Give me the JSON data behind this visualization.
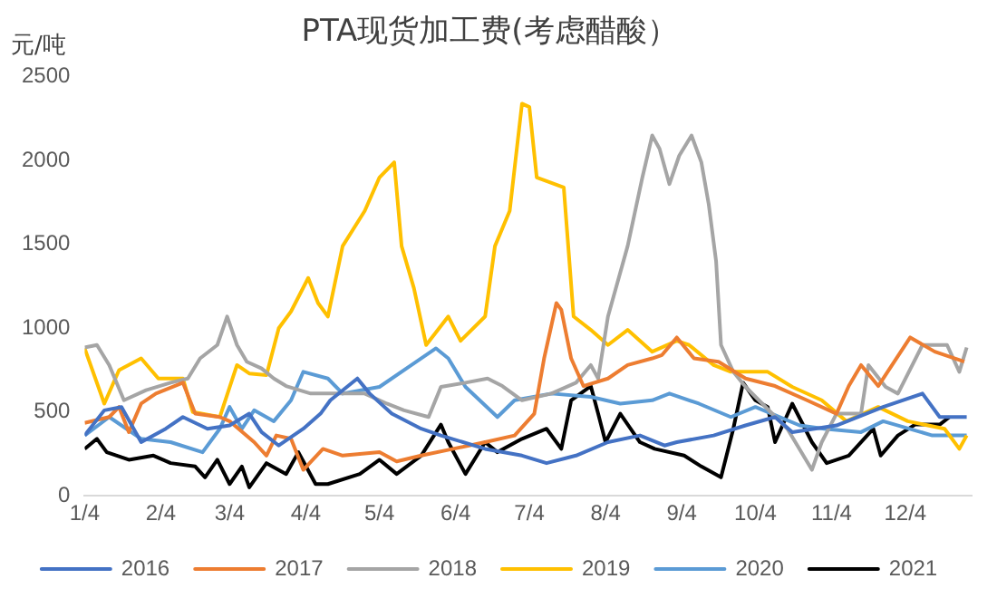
{
  "chart_data": {
    "type": "line",
    "title": "PTA现货加工费(考虑醋酸）",
    "ylabel": "元/吨",
    "xlim": [
      "--01-04",
      "--12-31"
    ],
    "xticks": [
      {
        "value": "--01-04",
        "label": "1/4"
      },
      {
        "value": "--02-04",
        "label": "2/4"
      },
      {
        "value": "--03-04",
        "label": "3/4"
      },
      {
        "value": "--04-04",
        "label": "4/4"
      },
      {
        "value": "--05-04",
        "label": "5/4"
      },
      {
        "value": "--06-04",
        "label": "6/4"
      },
      {
        "value": "--07-04",
        "label": "7/4"
      },
      {
        "value": "--08-04",
        "label": "8/4"
      },
      {
        "value": "--09-04",
        "label": "9/4"
      },
      {
        "value": "--10-04",
        "label": "10/4"
      },
      {
        "value": "--11-04",
        "label": "11/4"
      },
      {
        "value": "--12-04",
        "label": "12/4"
      }
    ],
    "ylim": [
      0,
      2500
    ],
    "yticks": [
      0,
      500,
      1000,
      1500,
      2000,
      2500
    ],
    "grid": false,
    "legend": "bottom",
    "marker": "none",
    "line_style": "solid",
    "series": [
      {
        "name": "2016",
        "color": "#4472c4",
        "x": [
          "--01-04",
          "--01-12",
          "--01-19",
          "--01-27",
          "--02-06",
          "--02-13",
          "--02-23",
          "--03-04",
          "--03-12",
          "--03-17",
          "--03-24",
          "--04-03",
          "--04-10",
          "--04-14",
          "--04-25",
          "--04-30",
          "--05-09",
          "--05-21",
          "--05-29",
          "--06-16",
          "--07-01",
          "--07-11",
          "--07-23",
          "--08-05",
          "--08-18",
          "--08-28",
          "--09-02",
          "--09-17",
          "--09-30",
          "--10-12",
          "--10-19",
          "--11-06",
          "--11-25",
          "--12-11",
          "--12-18",
          "--12-29"
        ],
        "values": [
          360,
          510,
          530,
          320,
          400,
          470,
          400,
          420,
          490,
          380,
          300,
          400,
          490,
          570,
          700,
          610,
          490,
          400,
          360,
          280,
          240,
          195,
          240,
          320,
          360,
          300,
          320,
          360,
          420,
          470,
          380,
          420,
          530,
          610,
          470,
          470
        ]
      },
      {
        "name": "2017",
        "color": "#ed7d31",
        "x": [
          "--01-04",
          "--01-14",
          "--01-18",
          "--01-22",
          "--01-27",
          "--02-02",
          "--02-13",
          "--02-18",
          "--02-28",
          "--03-04",
          "--03-14",
          "--03-19",
          "--03-23",
          "--03-29",
          "--04-03",
          "--04-11",
          "--04-19",
          "--05-04",
          "--05-11",
          "--05-21",
          "--06-03",
          "--06-16",
          "--06-28",
          "--07-06",
          "--07-10",
          "--07-15",
          "--07-17",
          "--07-21",
          "--07-26",
          "--08-05",
          "--08-13",
          "--08-23",
          "--08-27",
          "--09-02",
          "--09-09",
          "--09-19",
          "--09-30",
          "--10-12",
          "--10-25",
          "--11-06",
          "--11-11",
          "--11-16",
          "--11-23",
          "--12-06",
          "--12-16",
          "--12-28"
        ],
        "values": [
          435,
          470,
          530,
          380,
          550,
          610,
          675,
          490,
          470,
          445,
          320,
          240,
          360,
          340,
          155,
          280,
          240,
          260,
          205,
          240,
          280,
          320,
          360,
          490,
          820,
          1150,
          1110,
          820,
          655,
          700,
          780,
          820,
          840,
          945,
          820,
          800,
          700,
          655,
          570,
          490,
          655,
          780,
          655,
          945,
          860,
          800
        ]
      },
      {
        "name": "2018",
        "color": "#a5a5a5",
        "x": [
          "--01-04",
          "--01-09",
          "--01-14",
          "--01-20",
          "--01-29",
          "--02-08",
          "--02-15",
          "--02-20",
          "--02-27",
          "--03-03",
          "--03-07",
          "--03-11",
          "--03-17",
          "--03-22",
          "--03-27",
          "--04-06",
          "--04-19",
          "--04-28",
          "--05-07",
          "--05-14",
          "--05-24",
          "--05-29",
          "--06-08",
          "--06-17",
          "--06-23",
          "--07-01",
          "--07-13",
          "--07-23",
          "--07-29",
          "--08-01",
          "--08-05",
          "--08-13",
          "--08-19",
          "--08-23",
          "--08-26",
          "--08-30",
          "--09-03",
          "--09-08",
          "--09-12",
          "--09-15",
          "--09-18",
          "--09-20",
          "--09-25",
          "--09-30",
          "--10-17",
          "--10-27",
          "--10-31",
          "--11-06",
          "--11-16",
          "--11-19",
          "--11-26",
          "--12-01",
          "--12-11",
          "--12-21",
          "--12-26",
          "--12-29"
        ],
        "values": [
          885,
          900,
          780,
          570,
          630,
          675,
          700,
          820,
          900,
          1070,
          900,
          800,
          760,
          700,
          655,
          610,
          610,
          610,
          550,
          510,
          470,
          650,
          675,
          700,
          655,
          570,
          610,
          675,
          780,
          700,
          1070,
          1490,
          1900,
          2150,
          2070,
          1860,
          2030,
          2150,
          1990,
          1740,
          1400,
          900,
          740,
          650,
          400,
          155,
          320,
          490,
          490,
          780,
          650,
          610,
          900,
          900,
          740,
          885
        ]
      },
      {
        "name": "2019",
        "color": "#ffc000",
        "x": [
          "--01-04",
          "--01-12",
          "--01-18",
          "--01-27",
          "--02-03",
          "--02-13",
          "--02-17",
          "--02-28",
          "--03-07",
          "--03-12",
          "--03-19",
          "--03-24",
          "--03-29",
          "--04-05",
          "--04-09",
          "--04-13",
          "--04-19",
          "--04-28",
          "--05-04",
          "--05-10",
          "--05-13",
          "--05-18",
          "--05-23",
          "--06-01",
          "--06-06",
          "--06-16",
          "--06-20",
          "--06-26",
          "--07-01",
          "--07-04",
          "--07-07",
          "--07-18",
          "--07-22",
          "--07-29",
          "--08-05",
          "--08-13",
          "--08-23",
          "--09-02",
          "--09-07",
          "--09-17",
          "--09-24",
          "--10-09",
          "--10-19",
          "--10-31",
          "--11-10",
          "--11-23",
          "--12-05",
          "--12-20",
          "--12-26",
          "--12-29"
        ],
        "values": [
          880,
          550,
          750,
          820,
          700,
          700,
          500,
          470,
          780,
          730,
          720,
          1000,
          1100,
          1300,
          1150,
          1070,
          1490,
          1700,
          1900,
          1990,
          1490,
          1240,
          900,
          1070,
          925,
          1070,
          1490,
          1700,
          2340,
          2320,
          1900,
          1840,
          1070,
          990,
          900,
          990,
          860,
          925,
          900,
          780,
          740,
          740,
          650,
          570,
          445,
          530,
          445,
          400,
          280,
          360
        ]
      },
      {
        "name": "2020",
        "color": "#5b9bd5",
        "x": [
          "--01-04",
          "--01-14",
          "--01-27",
          "--02-08",
          "--02-21",
          "--02-28",
          "--03-04",
          "--03-09",
          "--03-14",
          "--03-22",
          "--03-29",
          "--04-03",
          "--04-13",
          "--04-19",
          "--05-04",
          "--05-17",
          "--05-27",
          "--06-01",
          "--06-08",
          "--06-21",
          "--06-28",
          "--07-13",
          "--07-29",
          "--08-10",
          "--08-23",
          "--08-30",
          "--09-11",
          "--09-24",
          "--10-04",
          "--10-22",
          "--11-01",
          "--11-16",
          "--11-25",
          "--12-15",
          "--12-29"
        ],
        "values": [
          360,
          470,
          340,
          320,
          260,
          400,
          530,
          400,
          510,
          445,
          570,
          740,
          700,
          610,
          650,
          780,
          880,
          820,
          650,
          470,
          570,
          610,
          590,
          550,
          570,
          610,
          550,
          470,
          530,
          420,
          400,
          380,
          445,
          360,
          360
        ]
      },
      {
        "name": "2021",
        "color": "#000000",
        "x": [
          "--01-04",
          "--01-09",
          "--01-13",
          "--01-22",
          "--02-01",
          "--02-08",
          "--02-18",
          "--02-22",
          "--02-27",
          "--03-04",
          "--03-09",
          "--03-12",
          "--03-19",
          "--03-27",
          "--04-01",
          "--04-08",
          "--04-13",
          "--04-26",
          "--05-04",
          "--05-11",
          "--05-21",
          "--05-29",
          "--06-01",
          "--06-08",
          "--06-16",
          "--06-21",
          "--07-01",
          "--07-11",
          "--07-17",
          "--07-21",
          "--07-29",
          "--08-01",
          "--08-04",
          "--08-10",
          "--08-18",
          "--08-24",
          "--09-05",
          "--09-12",
          "--09-20",
          "--09-25",
          "--09-29",
          "--10-04",
          "--10-09",
          "--10-12",
          "--10-19",
          "--10-27",
          "--11-02",
          "--11-11",
          "--11-21",
          "--11-24",
          "--12-01",
          "--12-08",
          "--12-18",
          "--12-22"
        ],
        "values": [
          280,
          340,
          260,
          215,
          240,
          195,
          175,
          110,
          215,
          70,
          175,
          50,
          195,
          130,
          260,
          70,
          70,
          130,
          215,
          130,
          240,
          425,
          320,
          130,
          320,
          260,
          340,
          400,
          280,
          570,
          655,
          490,
          320,
          490,
          320,
          280,
          240,
          175,
          110,
          400,
          675,
          570,
          530,
          320,
          550,
          320,
          195,
          240,
          400,
          240,
          360,
          425,
          425,
          470
        ]
      }
    ]
  }
}
